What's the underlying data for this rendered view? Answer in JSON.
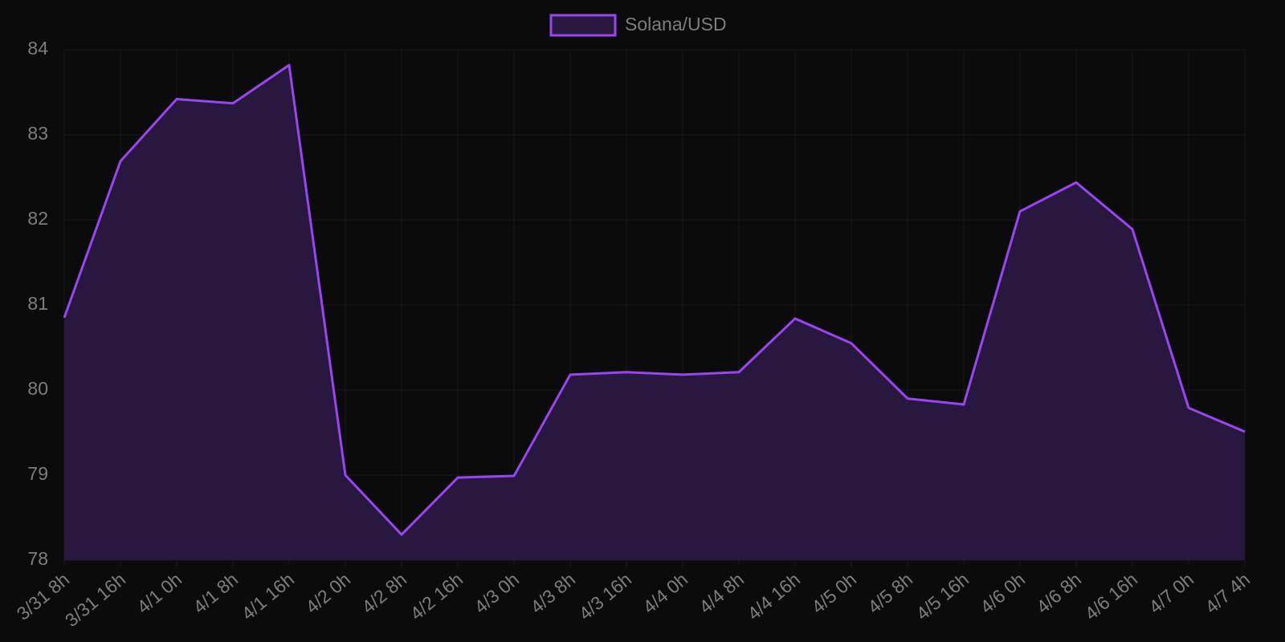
{
  "chart_data": {
    "type": "line",
    "categories": [
      "3/31 8h",
      "3/31 16h",
      "4/1 0h",
      "4/1 8h",
      "4/1 16h",
      "4/2 0h",
      "4/2 8h",
      "4/2 16h",
      "4/3 0h",
      "4/3 8h",
      "4/3 16h",
      "4/4 0h",
      "4/4 8h",
      "4/4 16h",
      "4/5 0h",
      "4/5 8h",
      "4/5 16h",
      "4/6 0h",
      "4/6 8h",
      "4/6 16h",
      "4/7 0h",
      "4/7 4h"
    ],
    "series": [
      {
        "name": "Solana/USD",
        "color": "#9a44f2",
        "fill_color": "#28173e",
        "values": [
          80.85,
          82.69,
          83.42,
          83.37,
          83.82,
          79.0,
          78.3,
          78.97,
          78.99,
          80.18,
          80.21,
          80.18,
          80.21,
          80.84,
          80.55,
          79.9,
          79.83,
          82.1,
          82.44,
          81.89,
          79.79,
          79.51
        ]
      }
    ],
    "ylim": [
      78,
      84
    ],
    "yticks": [
      78,
      79,
      80,
      81,
      82,
      83,
      84
    ],
    "grid": true,
    "legend": "top"
  }
}
